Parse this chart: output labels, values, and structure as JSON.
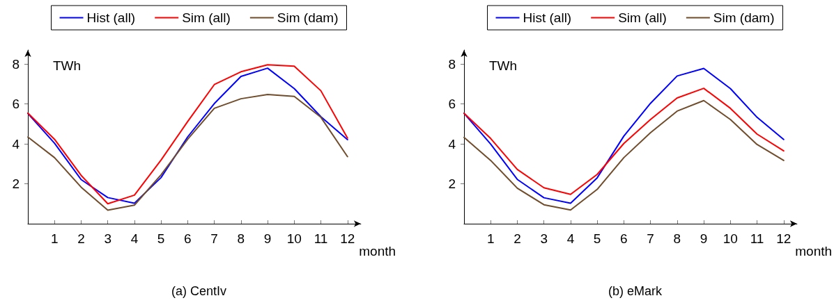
{
  "chart_data": [
    {
      "type": "line",
      "title": "(a) CentIv",
      "xlabel": "month",
      "ylabel": "TWh",
      "x": [
        0,
        1,
        2,
        3,
        4,
        5,
        6,
        7,
        8,
        9,
        10,
        11,
        12
      ],
      "xlim": [
        0,
        12.5
      ],
      "xticks": [
        1,
        2,
        3,
        4,
        5,
        6,
        7,
        8,
        9,
        10,
        11,
        12
      ],
      "ylim": [
        0,
        8.7
      ],
      "yticks": [
        2,
        4,
        6,
        8
      ],
      "grid": false,
      "legend": "top",
      "marker": "none",
      "line_style": "solid",
      "series": [
        {
          "name": "Hist (all)",
          "color": "#0000ff",
          "values": [
            5.52,
            4.03,
            2.21,
            1.31,
            1.03,
            2.31,
            4.35,
            6.02,
            7.38,
            7.79,
            6.77,
            5.36,
            4.21
          ]
        },
        {
          "name": "Sim (all)",
          "color": "#ff0000",
          "values": [
            5.54,
            4.23,
            2.42,
            1.0,
            1.43,
            3.19,
            5.12,
            6.97,
            7.61,
            7.96,
            7.89,
            6.66,
            4.29
          ]
        },
        {
          "name": "Sim (dam)",
          "color": "#704c2a",
          "values": [
            4.34,
            3.31,
            1.83,
            0.68,
            0.93,
            2.45,
            4.23,
            5.78,
            6.26,
            6.47,
            6.38,
            5.33,
            3.36
          ]
        }
      ]
    },
    {
      "type": "line",
      "title": "(b) eMark",
      "xlabel": "month",
      "ylabel": "TWh",
      "x": [
        0,
        1,
        2,
        3,
        4,
        5,
        6,
        7,
        8,
        9,
        10,
        11,
        12
      ],
      "xlim": [
        0,
        12.5
      ],
      "xticks": [
        1,
        2,
        3,
        4,
        5,
        6,
        7,
        8,
        9,
        10,
        11,
        12
      ],
      "ylim": [
        0,
        8.7
      ],
      "yticks": [
        2,
        4,
        6,
        8
      ],
      "grid": false,
      "legend": "top",
      "marker": "none",
      "line_style": "solid",
      "series": [
        {
          "name": "Hist (all)",
          "color": "#0000ff",
          "values": [
            5.53,
            3.99,
            2.22,
            1.3,
            1.03,
            2.3,
            4.39,
            6.03,
            7.4,
            7.78,
            6.77,
            5.33,
            4.22
          ]
        },
        {
          "name": "Sim (all)",
          "color": "#ff0000",
          "values": [
            5.53,
            4.27,
            2.72,
            1.8,
            1.47,
            2.47,
            4.02,
            5.22,
            6.3,
            6.78,
            5.78,
            4.49,
            3.65
          ]
        },
        {
          "name": "Sim (dam)",
          "color": "#704c2a",
          "values": [
            4.32,
            3.17,
            1.78,
            0.95,
            0.69,
            1.72,
            3.31,
            4.56,
            5.64,
            6.17,
            5.22,
            3.97,
            3.17
          ]
        }
      ]
    }
  ]
}
